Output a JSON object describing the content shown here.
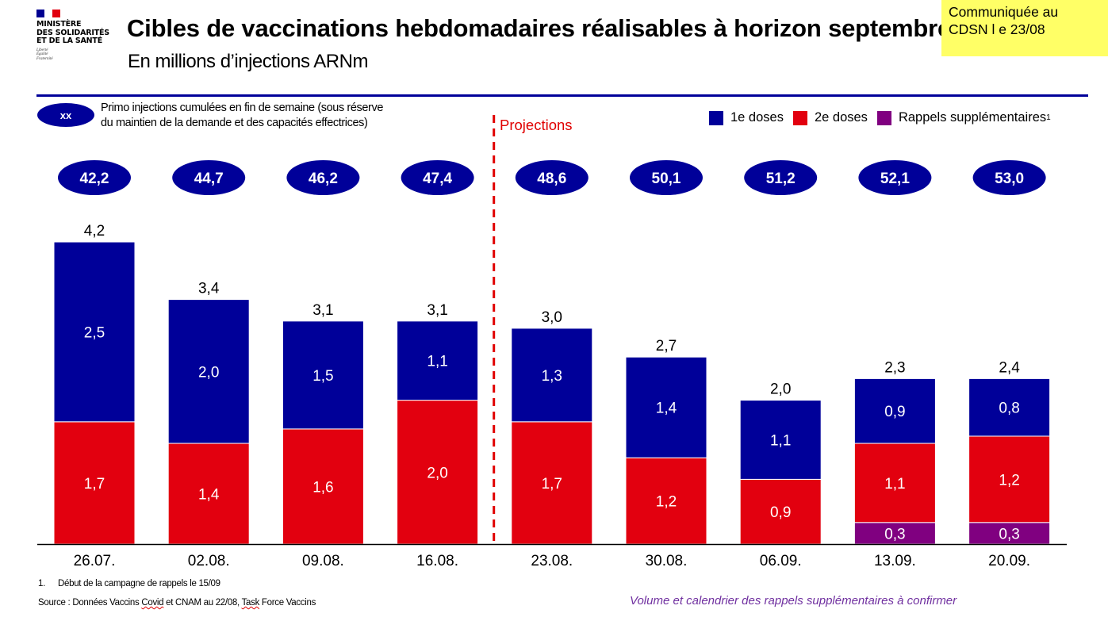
{
  "logo": {
    "line1": "MINISTÈRE",
    "line2": "DES SOLIDARITÉS",
    "line3": "ET DE LA SANTÉ",
    "motto": [
      "Liberté",
      "Égalité",
      "Fraternité"
    ],
    "flag_colors": [
      "#000091",
      "#ffffff",
      "#e1000f"
    ]
  },
  "header": {
    "title": "Cibles de vaccinations hebdomadaires réalisables à horizon septembre",
    "subtitle": "En millions d’injections ARNm"
  },
  "note_box": {
    "line1": "Communiquée  au",
    "line2": "CDSN l e 23/08",
    "color": "#ffff66"
  },
  "key": {
    "ellipse_label": "xx",
    "line1": "Primo injections cumulées en fin de semaine (sous réserve",
    "line2": "du maintien de la demande et des capacités effectrices)"
  },
  "projections_label": "Projections",
  "chart_data": {
    "type": "bar",
    "stacked": true,
    "title": "Cibles de vaccinations hebdomadaires réalisables à horizon septembre",
    "ylabel": "En millions d’injections ARNm",
    "xlabel": "",
    "ylim": [
      0,
      4.2
    ],
    "grid": false,
    "legend_position": "top-right",
    "categories": [
      "26.07.",
      "02.08.",
      "09.08.",
      "16.08.",
      "23.08.",
      "30.08.",
      "06.09.",
      "13.09.",
      "20.09."
    ],
    "series": [
      {
        "name": "Rappels supplémentaires",
        "superscript": "1",
        "color": "#800080",
        "values": [
          0,
          0,
          0,
          0,
          0,
          0,
          0,
          0.3,
          0.3
        ],
        "labels": [
          "",
          "",
          "",
          "",
          "",
          "",
          "",
          "0,3",
          "0,3"
        ]
      },
      {
        "name": "2e doses",
        "color": "#e2000f",
        "values": [
          1.7,
          1.4,
          1.6,
          2.0,
          1.7,
          1.2,
          0.9,
          1.1,
          1.2
        ],
        "labels": [
          "1,7",
          "1,4",
          "1,6",
          "2,0",
          "1,7",
          "1,2",
          "0,9",
          "1,1",
          "1,2"
        ]
      },
      {
        "name": "1e doses",
        "color": "#000099",
        "values": [
          2.5,
          2.0,
          1.5,
          1.1,
          1.3,
          1.4,
          1.1,
          0.9,
          0.8
        ],
        "labels": [
          "2,5",
          "2,0",
          "1,5",
          "1,1",
          "1,3",
          "1,4",
          "1,1",
          "0,9",
          "0,8"
        ]
      }
    ],
    "totals": [
      4.2,
      3.4,
      3.1,
      3.1,
      3.0,
      2.7,
      2.0,
      2.3,
      2.4
    ],
    "total_labels": [
      "4,2",
      "3,4",
      "3,1",
      "3,1",
      "3,0",
      "2,7",
      "2,0",
      "2,3",
      "2,4"
    ],
    "cumulative_first_doses": [
      42.2,
      44.7,
      46.2,
      47.4,
      48.6,
      50.1,
      51.2,
      52.1,
      53.0
    ],
    "cumulative_labels": [
      "42,2",
      "44,7",
      "46,2",
      "47,4",
      "48,6",
      "50,1",
      "51,2",
      "52,1",
      "53,0"
    ],
    "projection_start_category": "23.08."
  },
  "legend": [
    {
      "label": "1e doses",
      "color": "#000099",
      "sup": ""
    },
    {
      "label": "2e doses",
      "color": "#e2000f",
      "sup": ""
    },
    {
      "label": "Rappels supplémentaires",
      "color": "#800080",
      "sup": "1"
    }
  ],
  "footer": {
    "footnote_num": "1.",
    "footnote_text": "Début de la campagne de rappels le 15/09",
    "source_a": "Source : Données Vaccins ",
    "source_b": "Covid",
    "source_c": " et CNAM au 22/08, ",
    "source_d": "Task",
    "source_e": " Force Vaccins",
    "confirm_note": "Volume et calendrier des rappels supplémentaires à confirmer"
  }
}
